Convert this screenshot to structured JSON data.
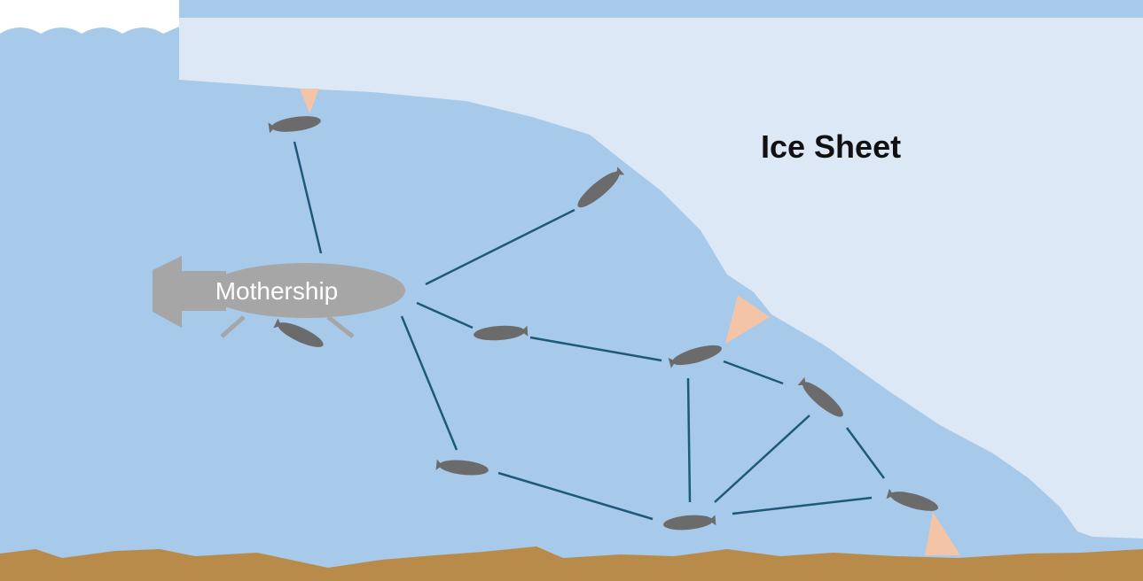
{
  "labels": {
    "ice_sheet": "Ice Sheet",
    "mothership": "Mothership"
  },
  "colors": {
    "water": "#a7c9ea",
    "ice": "#dce8f6",
    "seabed": "#b98b4a",
    "sensor_beam": "#f4c4a6",
    "network_link": "#1e5a78",
    "vehicle": "#6b6b6b",
    "mothership_hull": "#a6a6a6",
    "label_text": "#111111",
    "waves": "#ffffff"
  },
  "vehicles": [
    "auv-under-ice-top",
    "auv-ice-edge-upper",
    "auv-docking",
    "auv-mid",
    "auv-hub",
    "auv-right",
    "auv-lower-left",
    "auv-bottom",
    "auv-seabed-right"
  ],
  "network_links": [
    [
      "mothership",
      "auv-under-ice-top"
    ],
    [
      "mothership",
      "auv-ice-edge-upper"
    ],
    [
      "mothership",
      "auv-mid"
    ],
    [
      "mothership",
      "auv-lower-left"
    ],
    [
      "auv-mid",
      "auv-hub"
    ],
    [
      "auv-hub",
      "auv-right"
    ],
    [
      "auv-hub",
      "auv-bottom"
    ],
    [
      "auv-right",
      "auv-bottom"
    ],
    [
      "auv-right",
      "auv-seabed-right"
    ],
    [
      "auv-lower-left",
      "auv-bottom"
    ],
    [
      "auv-bottom",
      "auv-seabed-right"
    ]
  ]
}
